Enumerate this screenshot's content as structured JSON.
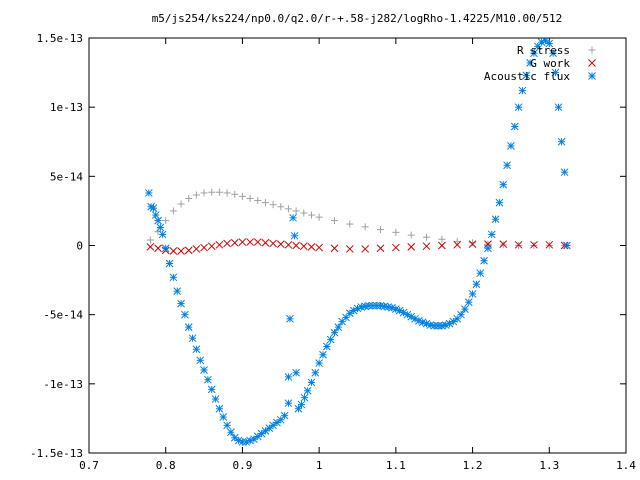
{
  "chart_data": {
    "type": "scatter",
    "title": "m5/js254/ks224/np0.0/q2.0/r-+.58-j282/logRho-1.4225/M10.00/512",
    "xlim": [
      0.7,
      1.4
    ],
    "ylim": [
      -1.5e-13,
      1.5e-13
    ],
    "x_ticks": [
      0.7,
      0.8,
      0.9,
      1.0,
      1.1,
      1.2,
      1.3,
      1.4
    ],
    "x_tick_labels": [
      "0.7",
      "0.8",
      "0.9",
      "1",
      "1.1",
      "1.2",
      "1.3",
      "1.4"
    ],
    "y_ticks": [
      -1.5e-13,
      -1e-13,
      -5e-14,
      0,
      5e-14,
      1e-13,
      1.5e-13
    ],
    "y_tick_labels": [
      "-1.5e-13",
      "-1e-13",
      "-5e-14",
      "0",
      "5e-14",
      "1e-13",
      "1.5e-13"
    ],
    "legend_position": "top-right",
    "grid": false,
    "series": [
      {
        "name": "R stress",
        "marker": "plus",
        "color": "#a0a0a0",
        "points": [
          [
            0.78,
            4e-15
          ],
          [
            0.79,
            1e-14
          ],
          [
            0.8,
            1.8e-14
          ],
          [
            0.81,
            2.5e-14
          ],
          [
            0.82,
            3e-14
          ],
          [
            0.83,
            3.4e-14
          ],
          [
            0.84,
            3.65e-14
          ],
          [
            0.85,
            3.8e-14
          ],
          [
            0.86,
            3.85e-14
          ],
          [
            0.87,
            3.85e-14
          ],
          [
            0.88,
            3.8e-14
          ],
          [
            0.89,
            3.7e-14
          ],
          [
            0.9,
            3.55e-14
          ],
          [
            0.91,
            3.4e-14
          ],
          [
            0.92,
            3.25e-14
          ],
          [
            0.93,
            3.1e-14
          ],
          [
            0.94,
            2.95e-14
          ],
          [
            0.95,
            2.8e-14
          ],
          [
            0.96,
            2.65e-14
          ],
          [
            0.97,
            2.5e-14
          ],
          [
            0.98,
            2.35e-14
          ],
          [
            0.99,
            2.2e-14
          ],
          [
            1.0,
            2.05e-14
          ],
          [
            1.02,
            1.8e-14
          ],
          [
            1.04,
            1.55e-14
          ],
          [
            1.06,
            1.35e-14
          ],
          [
            1.08,
            1.15e-14
          ],
          [
            1.1,
            9.5e-15
          ],
          [
            1.12,
            7.5e-15
          ],
          [
            1.14,
            6e-15
          ],
          [
            1.16,
            4.5e-15
          ],
          [
            1.18,
            3e-15
          ],
          [
            1.2,
            2e-15
          ],
          [
            1.22,
            1e-15
          ],
          [
            1.24,
            5e-16
          ],
          [
            1.26,
            0.0
          ],
          [
            1.28,
            0.0
          ],
          [
            1.3,
            0.0
          ],
          [
            1.32,
            0.0
          ]
        ]
      },
      {
        "name": "G work",
        "marker": "cross",
        "color": "#cc0000",
        "points": [
          [
            0.78,
            -1e-15
          ],
          [
            0.79,
            -2e-15
          ],
          [
            0.8,
            -3.5e-15
          ],
          [
            0.81,
            -4e-15
          ],
          [
            0.82,
            -4e-15
          ],
          [
            0.83,
            -3.5e-15
          ],
          [
            0.84,
            -2.5e-15
          ],
          [
            0.85,
            -1.5e-15
          ],
          [
            0.86,
            -5e-16
          ],
          [
            0.87,
            5e-16
          ],
          [
            0.88,
            1.5e-15
          ],
          [
            0.89,
            2e-15
          ],
          [
            0.9,
            2.5e-15
          ],
          [
            0.91,
            2.5e-15
          ],
          [
            0.92,
            2.5e-15
          ],
          [
            0.93,
            2e-15
          ],
          [
            0.94,
            1.5e-15
          ],
          [
            0.95,
            1e-15
          ],
          [
            0.96,
            5e-16
          ],
          [
            0.97,
            0.0
          ],
          [
            0.98,
            -5e-16
          ],
          [
            0.99,
            -1e-15
          ],
          [
            1.0,
            -1.5e-15
          ],
          [
            1.02,
            -2e-15
          ],
          [
            1.04,
            -2.5e-15
          ],
          [
            1.06,
            -2.5e-15
          ],
          [
            1.08,
            -2e-15
          ],
          [
            1.1,
            -1.5e-15
          ],
          [
            1.12,
            -1e-15
          ],
          [
            1.14,
            -5e-16
          ],
          [
            1.16,
            0.0
          ],
          [
            1.18,
            5e-16
          ],
          [
            1.2,
            1e-15
          ],
          [
            1.22,
            1e-15
          ],
          [
            1.24,
            1e-15
          ],
          [
            1.26,
            5e-16
          ],
          [
            1.28,
            5e-16
          ],
          [
            1.3,
            5e-16
          ],
          [
            1.32,
            0.0
          ]
        ]
      },
      {
        "name": "Acoustic flux",
        "marker": "star",
        "color": "#0080e0",
        "points": [
          [
            0.778,
            3.8e-14
          ],
          [
            0.781,
            2.8e-14
          ],
          [
            0.784,
            2.7e-14
          ],
          [
            0.787,
            2.2e-14
          ],
          [
            0.79,
            1.8e-14
          ],
          [
            0.793,
            1.3e-14
          ],
          [
            0.796,
            8e-15
          ],
          [
            0.8,
            -2e-15
          ],
          [
            0.805,
            -1.3e-14
          ],
          [
            0.81,
            -2.3e-14
          ],
          [
            0.815,
            -3.3e-14
          ],
          [
            0.82,
            -4.2e-14
          ],
          [
            0.825,
            -5e-14
          ],
          [
            0.83,
            -5.9e-14
          ],
          [
            0.835,
            -6.7e-14
          ],
          [
            0.84,
            -7.5e-14
          ],
          [
            0.845,
            -8.3e-14
          ],
          [
            0.85,
            -9e-14
          ],
          [
            0.855,
            -9.7e-14
          ],
          [
            0.86,
            -1.04e-13
          ],
          [
            0.865,
            -1.11e-13
          ],
          [
            0.87,
            -1.18e-13
          ],
          [
            0.875,
            -1.24e-13
          ],
          [
            0.88,
            -1.3e-13
          ],
          [
            0.885,
            -1.35e-13
          ],
          [
            0.89,
            -1.39e-13
          ],
          [
            0.895,
            -1.41e-13
          ],
          [
            0.9,
            -1.42e-13
          ],
          [
            0.905,
            -1.42e-13
          ],
          [
            0.91,
            -1.41e-13
          ],
          [
            0.915,
            -1.4e-13
          ],
          [
            0.92,
            -1.38e-13
          ],
          [
            0.925,
            -1.36e-13
          ],
          [
            0.93,
            -1.34e-13
          ],
          [
            0.935,
            -1.32e-13
          ],
          [
            0.94,
            -1.3e-13
          ],
          [
            0.945,
            -1.28e-13
          ],
          [
            0.95,
            -1.26e-13
          ],
          [
            0.955,
            -1.23e-13
          ],
          [
            0.96,
            -1.14e-13
          ],
          [
            0.96,
            -9.5e-14
          ],
          [
            0.962,
            -5.3e-14
          ],
          [
            0.966,
            2e-14
          ],
          [
            0.968,
            7e-15
          ],
          [
            0.97,
            -9.2e-14
          ],
          [
            0.973,
            -1.18e-13
          ],
          [
            0.977,
            -1.15e-13
          ],
          [
            0.981,
            -1.1e-13
          ],
          [
            0.985,
            -1.05e-13
          ],
          [
            0.99,
            -9.9e-14
          ],
          [
            0.995,
            -9.2e-14
          ],
          [
            1.0,
            -8.5e-14
          ],
          [
            1.005,
            -7.9e-14
          ],
          [
            1.01,
            -7.3e-14
          ],
          [
            1.015,
            -6.8e-14
          ],
          [
            1.02,
            -6.3e-14
          ],
          [
            1.025,
            -5.9e-14
          ],
          [
            1.03,
            -5.5e-14
          ],
          [
            1.035,
            -5.2e-14
          ],
          [
            1.04,
            -4.9e-14
          ],
          [
            1.045,
            -4.7e-14
          ],
          [
            1.05,
            -4.55e-14
          ],
          [
            1.055,
            -4.45e-14
          ],
          [
            1.06,
            -4.4e-14
          ],
          [
            1.065,
            -4.35e-14
          ],
          [
            1.07,
            -4.35e-14
          ],
          [
            1.075,
            -4.35e-14
          ],
          [
            1.08,
            -4.35e-14
          ],
          [
            1.085,
            -4.4e-14
          ],
          [
            1.09,
            -4.45e-14
          ],
          [
            1.095,
            -4.5e-14
          ],
          [
            1.1,
            -4.6e-14
          ],
          [
            1.105,
            -4.7e-14
          ],
          [
            1.11,
            -4.85e-14
          ],
          [
            1.115,
            -5e-14
          ],
          [
            1.12,
            -5.15e-14
          ],
          [
            1.125,
            -5.3e-14
          ],
          [
            1.13,
            -5.45e-14
          ],
          [
            1.135,
            -5.55e-14
          ],
          [
            1.14,
            -5.65e-14
          ],
          [
            1.145,
            -5.75e-14
          ],
          [
            1.15,
            -5.8e-14
          ],
          [
            1.155,
            -5.8e-14
          ],
          [
            1.16,
            -5.8e-14
          ],
          [
            1.165,
            -5.75e-14
          ],
          [
            1.17,
            -5.65e-14
          ],
          [
            1.175,
            -5.5e-14
          ],
          [
            1.18,
            -5.3e-14
          ],
          [
            1.185,
            -5e-14
          ],
          [
            1.19,
            -4.6e-14
          ],
          [
            1.195,
            -4.1e-14
          ],
          [
            1.2,
            -3.5e-14
          ],
          [
            1.205,
            -2.8e-14
          ],
          [
            1.21,
            -2e-14
          ],
          [
            1.215,
            -1.1e-14
          ],
          [
            1.22,
            -2e-15
          ],
          [
            1.225,
            8e-15
          ],
          [
            1.23,
            1.9e-14
          ],
          [
            1.235,
            3.1e-14
          ],
          [
            1.24,
            4.4e-14
          ],
          [
            1.245,
            5.8e-14
          ],
          [
            1.25,
            7.2e-14
          ],
          [
            1.255,
            8.6e-14
          ],
          [
            1.26,
            1e-13
          ],
          [
            1.265,
            1.12e-13
          ],
          [
            1.27,
            1.23e-13
          ],
          [
            1.275,
            1.32e-13
          ],
          [
            1.28,
            1.39e-13
          ],
          [
            1.285,
            1.44e-13
          ],
          [
            1.29,
            1.47e-13
          ],
          [
            1.295,
            1.48e-13
          ],
          [
            1.3,
            1.46e-13
          ],
          [
            1.305,
            1.39e-13
          ],
          [
            1.308,
            1.25e-13
          ],
          [
            1.312,
            1e-13
          ],
          [
            1.316,
            7.5e-14
          ],
          [
            1.32,
            5.3e-14
          ],
          [
            1.323,
            0.0
          ]
        ]
      }
    ]
  }
}
